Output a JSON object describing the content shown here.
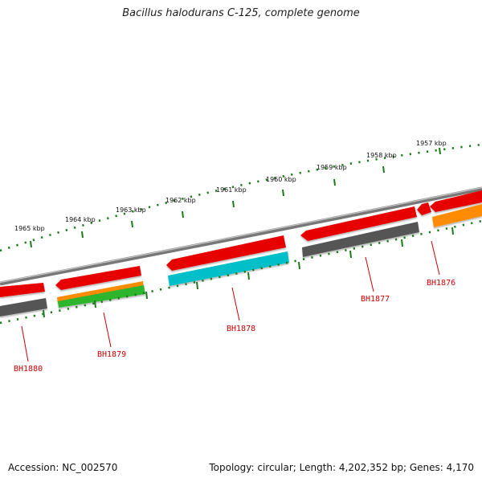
{
  "title": "Bacillus halodurans C-125, complete genome",
  "footer": {
    "accession": "Accession: NC_002570",
    "summary": "Topology: circular; Length: 4,202,352 bp; Genes: 4,170"
  },
  "scale_labels": [
    "1957 kbp",
    "1958 kbp",
    "1959 kbp",
    "1960 kbp",
    "1961 kbp",
    "1962 kbp",
    "1963 kbp",
    "1964 kbp",
    "1965 kbp"
  ],
  "genes": [
    "BH1876",
    "BH1877",
    "BH1878",
    "BH1879",
    "BH1880"
  ],
  "colors": {
    "red": "#e60000",
    "gray": "#555555",
    "cyan": "#00bfc8",
    "orange": "#ff8c00",
    "green": "#2fb52f",
    "backbone": "#7a7a7a",
    "scale": "#1a7a1a",
    "gene_label": "#cc0000"
  }
}
